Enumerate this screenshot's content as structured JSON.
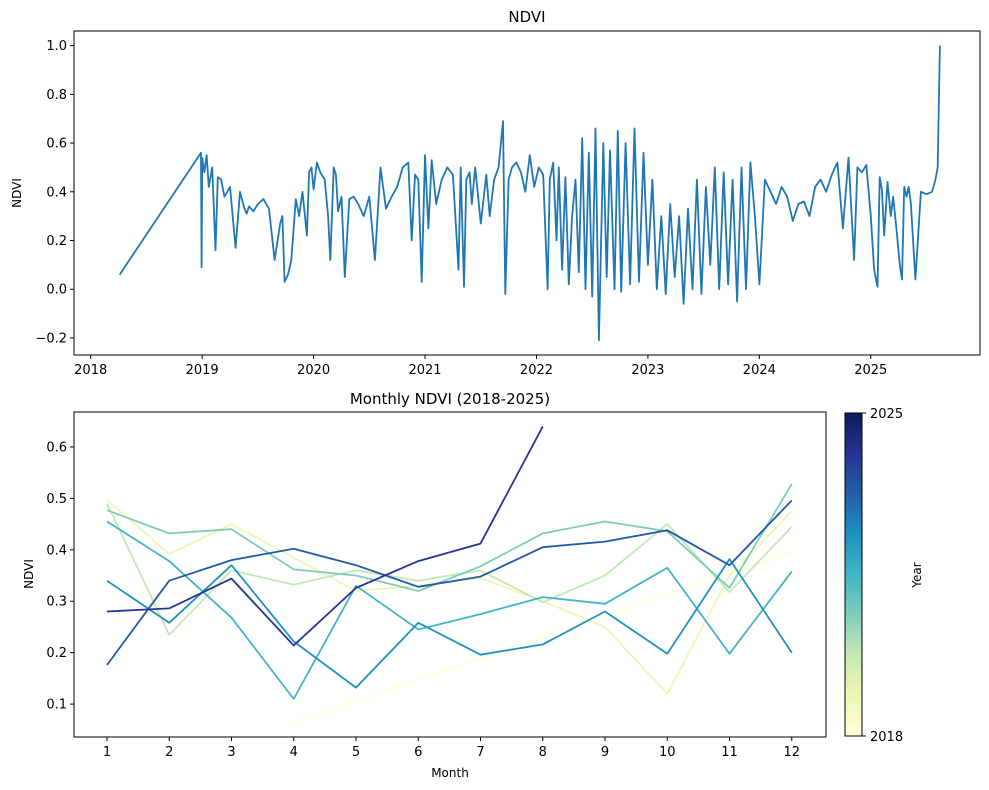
{
  "chart_data": [
    {
      "type": "line",
      "title": "NDVI",
      "ylabel": "NDVI",
      "xlabel": "",
      "xlim": [
        2017.85,
        2025.98
      ],
      "ylim": [
        -0.27,
        1.06
      ],
      "xticks": [
        2018,
        2019,
        2020,
        2021,
        2022,
        2023,
        2024,
        2025
      ],
      "xtick_labels": [
        "2018",
        "2019",
        "2020",
        "2021",
        "2022",
        "2023",
        "2024",
        "2025"
      ],
      "yticks": [
        -0.2,
        0.0,
        0.2,
        0.4,
        0.6,
        0.8,
        1.0
      ],
      "ytick_labels": [
        "−0.2",
        "0.0",
        "0.2",
        "0.4",
        "0.6",
        "0.8",
        "1.0"
      ],
      "color": "#1f77b4",
      "x": [
        2018.26,
        2018.99,
        2018.995,
        2019.0,
        2019.02,
        2019.04,
        2019.06,
        2019.09,
        2019.12,
        2019.14,
        2019.17,
        2019.2,
        2019.25,
        2019.3,
        2019.34,
        2019.38,
        2019.4,
        2019.42,
        2019.46,
        2019.5,
        2019.55,
        2019.6,
        2019.65,
        2019.7,
        2019.72,
        2019.74,
        2019.77,
        2019.8,
        2019.84,
        2019.87,
        2019.9,
        2019.92,
        2019.94,
        2019.96,
        2019.98,
        2020.0,
        2020.03,
        2020.06,
        2020.1,
        2020.13,
        2020.15,
        2020.18,
        2020.2,
        2020.22,
        2020.25,
        2020.28,
        2020.32,
        2020.36,
        2020.4,
        2020.45,
        2020.5,
        2020.55,
        2020.6,
        2020.65,
        2020.7,
        2020.75,
        2020.8,
        2020.85,
        2020.88,
        2020.91,
        2020.94,
        2020.97,
        2021.0,
        2021.03,
        2021.06,
        2021.1,
        2021.15,
        2021.2,
        2021.25,
        2021.3,
        2021.32,
        2021.35,
        2021.37,
        2021.4,
        2021.42,
        2021.45,
        2021.5,
        2021.55,
        2021.58,
        2021.62,
        2021.66,
        2021.7,
        2021.72,
        2021.75,
        2021.78,
        2021.82,
        2021.86,
        2021.9,
        2021.94,
        2021.98,
        2022.02,
        2022.06,
        2022.1,
        2022.12,
        2022.15,
        2022.18,
        2022.2,
        2022.23,
        2022.26,
        2022.29,
        2022.32,
        2022.35,
        2022.38,
        2022.41,
        2022.44,
        2022.47,
        2022.5,
        2022.53,
        2022.56,
        2022.6,
        2022.63,
        2022.66,
        2022.7,
        2022.73,
        2022.76,
        2022.8,
        2022.84,
        2022.88,
        2022.92,
        2022.96,
        2023.0,
        2023.04,
        2023.08,
        2023.12,
        2023.16,
        2023.2,
        2023.24,
        2023.28,
        2023.32,
        2023.36,
        2023.4,
        2023.44,
        2023.48,
        2023.52,
        2023.56,
        2023.6,
        2023.64,
        2023.68,
        2023.72,
        2023.76,
        2023.8,
        2023.84,
        2023.88,
        2023.92,
        2023.96,
        2024.0,
        2024.05,
        2024.1,
        2024.15,
        2024.2,
        2024.25,
        2024.3,
        2024.35,
        2024.4,
        2024.45,
        2024.5,
        2024.55,
        2024.6,
        2024.65,
        2024.7,
        2024.75,
        2024.8,
        2024.85,
        2024.88,
        2024.92,
        2024.96,
        2025.0,
        2025.03,
        2025.06,
        2025.08,
        2025.1,
        2025.12,
        2025.15,
        2025.18,
        2025.2,
        2025.23,
        2025.26,
        2025.28,
        2025.3,
        2025.32,
        2025.34,
        2025.36,
        2025.4,
        2025.45,
        2025.5,
        2025.55,
        2025.58,
        2025.6,
        2025.62
      ],
      "y": [
        0.06,
        0.56,
        0.09,
        0.54,
        0.48,
        0.55,
        0.42,
        0.5,
        0.16,
        0.46,
        0.45,
        0.38,
        0.42,
        0.17,
        0.4,
        0.33,
        0.31,
        0.34,
        0.32,
        0.35,
        0.37,
        0.33,
        0.12,
        0.27,
        0.3,
        0.03,
        0.06,
        0.12,
        0.37,
        0.3,
        0.4,
        0.31,
        0.22,
        0.48,
        0.5,
        0.41,
        0.52,
        0.48,
        0.45,
        0.3,
        0.12,
        0.5,
        0.47,
        0.32,
        0.38,
        0.05,
        0.37,
        0.38,
        0.35,
        0.3,
        0.38,
        0.12,
        0.5,
        0.33,
        0.38,
        0.42,
        0.5,
        0.52,
        0.2,
        0.47,
        0.45,
        0.03,
        0.55,
        0.25,
        0.53,
        0.35,
        0.45,
        0.5,
        0.47,
        0.08,
        0.5,
        0.01,
        0.45,
        0.48,
        0.35,
        0.5,
        0.27,
        0.47,
        0.3,
        0.45,
        0.5,
        0.69,
        -0.02,
        0.45,
        0.5,
        0.52,
        0.48,
        0.4,
        0.55,
        0.42,
        0.5,
        0.47,
        0.0,
        0.45,
        0.52,
        0.2,
        0.5,
        0.08,
        0.46,
        0.02,
        0.3,
        0.45,
        0.07,
        0.62,
        0.0,
        0.56,
        -0.03,
        0.66,
        -0.21,
        0.6,
        0.05,
        0.57,
        0.0,
        0.65,
        -0.01,
        0.6,
        0.02,
        0.66,
        0.03,
        0.56,
        0.1,
        0.45,
        0.0,
        0.3,
        -0.02,
        0.35,
        0.05,
        0.3,
        -0.06,
        0.33,
        0.0,
        0.45,
        -0.02,
        0.42,
        0.1,
        0.5,
        0.0,
        0.48,
        0.02,
        0.45,
        -0.05,
        0.5,
        0.0,
        0.52,
        0.3,
        0.02,
        0.45,
        0.4,
        0.35,
        0.42,
        0.38,
        0.28,
        0.35,
        0.36,
        0.3,
        0.42,
        0.45,
        0.4,
        0.47,
        0.52,
        0.25,
        0.54,
        0.12,
        0.5,
        0.48,
        0.51,
        0.3,
        0.08,
        0.01,
        0.46,
        0.41,
        0.22,
        0.44,
        0.3,
        0.38,
        0.25,
        0.1,
        0.04,
        0.42,
        0.38,
        0.42,
        0.35,
        0.04,
        0.4,
        0.39,
        0.4,
        0.45,
        0.5,
        1.0
      ]
    },
    {
      "type": "line",
      "title": "Monthly NDVI (2018-2025)",
      "xlabel": "Month",
      "ylabel": "NDVI",
      "xlim": [
        0.47,
        12.55
      ],
      "ylim": [
        0.036,
        0.668
      ],
      "xticks": [
        1,
        2,
        3,
        4,
        5,
        6,
        7,
        8,
        9,
        10,
        11,
        12
      ],
      "xtick_labels": [
        "1",
        "2",
        "3",
        "4",
        "5",
        "6",
        "7",
        "8",
        "9",
        "10",
        "11",
        "12"
      ],
      "yticks": [
        0.1,
        0.2,
        0.3,
        0.4,
        0.5,
        0.6
      ],
      "ytick_labels": [
        "0.1",
        "0.2",
        "0.3",
        "0.4",
        "0.5",
        "0.6"
      ],
      "colorbar": {
        "label": "Year",
        "min_label": "2018",
        "max_label": "2025",
        "colors": [
          "#ffffd9",
          "#edf8b1",
          "#c7e9b4",
          "#7fcdbb",
          "#41b6c4",
          "#1d91c0",
          "#225ea8",
          "#253494",
          "#081d58"
        ]
      },
      "series": [
        {
          "year": 2018,
          "color": "#ffffd9",
          "x": [
            4,
            12
          ],
          "y": [
            0.065,
            0.395
          ]
        },
        {
          "year": 2019,
          "color": "#eef8b5",
          "x": [
            1,
            2,
            3,
            4,
            5,
            6,
            7,
            8,
            9,
            10,
            11,
            12
          ],
          "y": [
            0.497,
            0.392,
            0.45,
            0.385,
            0.32,
            0.33,
            0.345,
            0.3,
            0.25,
            0.12,
            0.35,
            0.475
          ]
        },
        {
          "year": 2020,
          "color": "#c4e8b6",
          "x": [
            1,
            2,
            3,
            4,
            5,
            6,
            7,
            8,
            9,
            10,
            11,
            12
          ],
          "y": [
            0.49,
            0.235,
            0.36,
            0.332,
            0.36,
            0.34,
            0.36,
            0.298,
            0.35,
            0.45,
            0.318,
            0.445
          ]
        },
        {
          "year": 2021,
          "color": "#7ecdbb",
          "x": [
            1,
            2,
            3,
            4,
            5,
            6,
            7,
            8,
            9,
            10,
            11,
            12
          ],
          "y": [
            0.477,
            0.432,
            0.44,
            0.362,
            0.35,
            0.32,
            0.368,
            0.432,
            0.455,
            0.436,
            0.326,
            0.528
          ]
        },
        {
          "year": 2022,
          "color": "#41b6c4",
          "x": [
            1,
            2,
            3,
            4,
            5,
            6,
            7,
            8,
            9,
            10,
            11,
            12
          ],
          "y": [
            0.455,
            0.378,
            0.268,
            0.11,
            0.33,
            0.245,
            0.275,
            0.308,
            0.295,
            0.365,
            0.198,
            0.358
          ]
        },
        {
          "year": 2023,
          "color": "#1f92c0",
          "x": [
            1,
            2,
            3,
            4,
            5,
            6,
            7,
            8,
            9,
            10,
            11,
            12
          ],
          "y": [
            0.34,
            0.258,
            0.37,
            0.222,
            0.132,
            0.258,
            0.196,
            0.216,
            0.28,
            0.198,
            0.382,
            0.2
          ]
        },
        {
          "year": 2024,
          "color": "#2359a6",
          "x": [
            1,
            2,
            3,
            4,
            5,
            6,
            7,
            8,
            9,
            10,
            11,
            12
          ],
          "y": [
            0.176,
            0.34,
            0.38,
            0.402,
            0.37,
            0.328,
            0.348,
            0.405,
            0.416,
            0.438,
            0.37,
            0.496
          ]
        },
        {
          "year": 2025,
          "color": "#253494",
          "x": [
            1,
            2,
            3,
            4,
            5,
            6,
            7,
            8
          ],
          "y": [
            0.28,
            0.286,
            0.344,
            0.214,
            0.326,
            0.378,
            0.412,
            0.64
          ]
        }
      ]
    }
  ]
}
